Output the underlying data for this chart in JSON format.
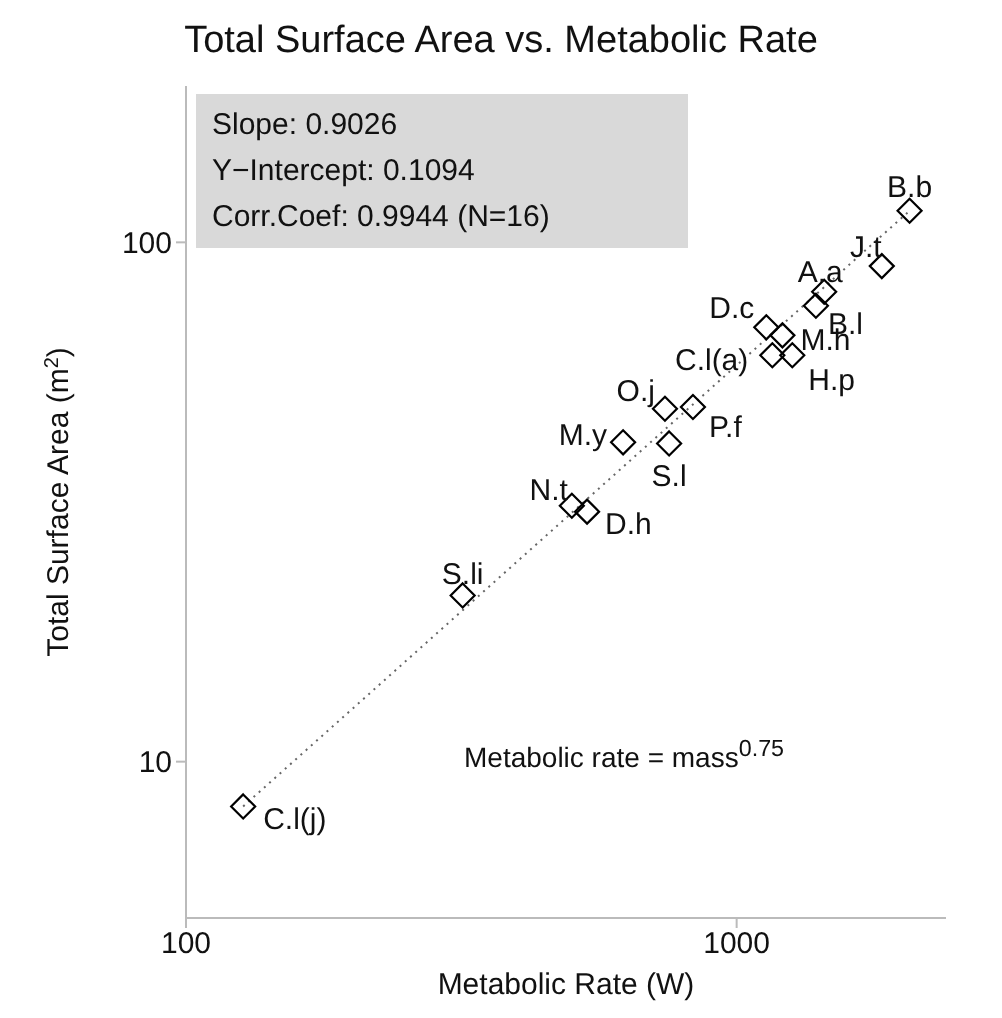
{
  "chart_data": {
    "type": "scatter",
    "title": "Total Surface Area vs. Metabolic Rate",
    "xlabel": "Metabolic Rate (W)",
    "ylabel": "Total Surface Area (m$^{2}$)",
    "log": "xy",
    "xlim": [
      100,
      2400
    ],
    "xticks": [
      100,
      1000
    ],
    "ylim": [
      5,
      200
    ],
    "yticks": [
      10,
      100
    ],
    "series": [
      {
        "marker": "diamond",
        "color": "#000000",
        "x": [
          127,
          318,
          502,
          535,
          622,
          754,
          741,
          833,
          1161,
          1132,
          1211,
          1262,
          1442,
          1393,
          1835,
          2061
        ],
        "values": [
          8.2,
          20.9,
          31.1,
          30.3,
          41.2,
          41,
          47.8,
          48.2,
          60.6,
          68.6,
          66.2,
          60.6,
          80.3,
          75.5,
          90,
          115
        ]
      },
      {
        "type": "line",
        "color": "#666666",
        "line_style": "dotted",
        "x": [
          127,
          2061
        ],
        "values": [
          8.2,
          115
        ]
      }
    ],
    "annotations": [
      {
        "text": "C.l(j)",
        "x": 127,
        "y": 8.2
      },
      {
        "text": "S.li",
        "x": 318,
        "y": 20.9
      },
      {
        "text": "N.t",
        "x": 502,
        "y": 31.1
      },
      {
        "text": "D.h",
        "x": 535,
        "y": 30.3
      },
      {
        "text": "M.y",
        "x": 622,
        "y": 41.2
      },
      {
        "text": "S.l",
        "x": 754,
        "y": 41
      },
      {
        "text": "O.j",
        "x": 741,
        "y": 47.8
      },
      {
        "text": "P.f",
        "x": 833,
        "y": 48.2
      },
      {
        "text": "C.l(a)",
        "x": 1161,
        "y": 60.6
      },
      {
        "text": "D.c",
        "x": 1132,
        "y": 68.6
      },
      {
        "text": "M.h",
        "x": 1211,
        "y": 66.2
      },
      {
        "text": "H.p",
        "x": 1262,
        "y": 60.6
      },
      {
        "text": "A.a",
        "x": 1442,
        "y": 80.3
      },
      {
        "text": "B.l",
        "x": 1393,
        "y": 75.5
      },
      {
        "text": "J.t",
        "x": 1835,
        "y": 90
      },
      {
        "text": "B.b",
        "x": 2061,
        "y": 115
      },
      "Slope:  0.9026",
      "Y−Intercept:  0.1094",
      "Corr.Coef:  0.9944 (N=16)",
      "Metabolic rate = mass$^{0.75}$"
    ]
  }
}
